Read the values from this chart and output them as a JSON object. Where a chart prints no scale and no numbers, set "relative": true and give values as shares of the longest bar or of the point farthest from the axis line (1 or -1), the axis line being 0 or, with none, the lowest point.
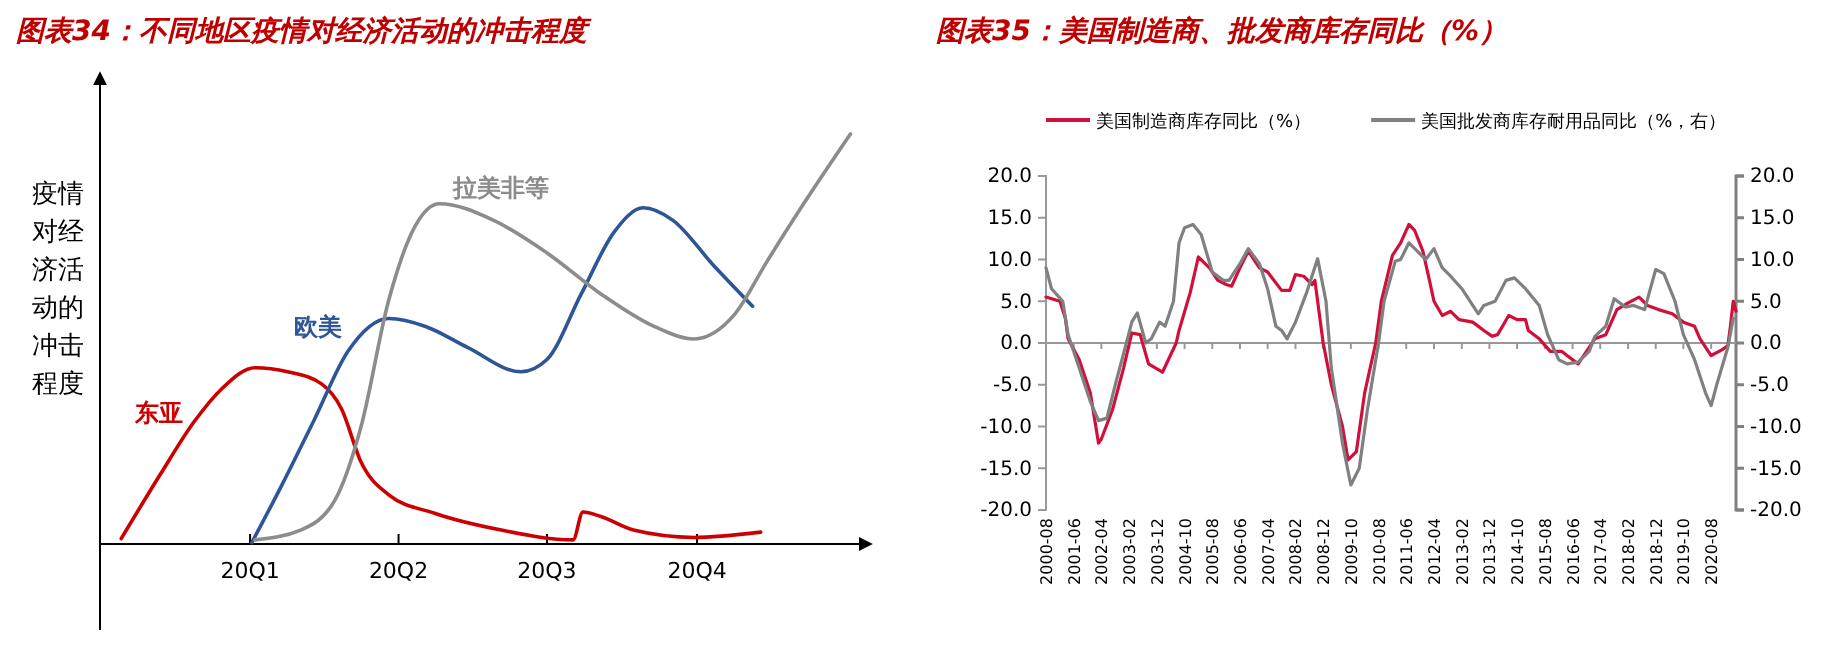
{
  "chart_data": [
    {
      "type": "line",
      "title": "图表34：不同地区疫情对经济活动的冲击程度",
      "ylabel": "疫情对经济活动的冲击程度",
      "relative": true,
      "tick_labels": "x",
      "xlim": [
        "2019-10-01",
        "2021-01-15"
      ],
      "xticks": [
        {
          "value": "2020-01-01",
          "label": "20Q1"
        },
        {
          "value": "2020-04-01",
          "label": "20Q2"
        },
        {
          "value": "2020-07-01",
          "label": "20Q3"
        },
        {
          "value": "2020-10-01",
          "label": "20Q4"
        }
      ],
      "series": [
        {
          "name": "东亚",
          "color": "#cc0000",
          "x": [
            "2019-10-14",
            "2019-11-07",
            "2019-11-28",
            "2019-12-15",
            "2020-01-04",
            "2020-01-24",
            "2020-02-14",
            "2020-02-26",
            "2020-03-09",
            "2020-03-26",
            "2020-04-23",
            "2020-06-03",
            "2020-07-17",
            "2020-07-23",
            "2020-08-03",
            "2020-08-23",
            "2020-09-29",
            "2020-11-09"
          ],
          "values": [
            0.013,
            0.17,
            0.3,
            0.38,
            0.43,
            0.42,
            0.39,
            0.33,
            0.2,
            0.12,
            0.075,
            0.034,
            0.01,
            0.078,
            0.067,
            0.034,
            0.016,
            0.029
          ]
        },
        {
          "name": "欧美",
          "color": "#2e5597",
          "x": [
            "2020-01-02",
            "2020-01-20",
            "2020-02-09",
            "2020-03-01",
            "2020-03-26",
            "2020-04-18",
            "2020-05-13",
            "2020-06-15",
            "2020-07-01",
            "2020-07-22",
            "2020-08-11",
            "2020-08-29",
            "2020-09-16",
            "2020-10-11",
            "2020-11-04"
          ],
          "values": [
            0.003,
            0.14,
            0.3,
            0.47,
            0.55,
            0.53,
            0.48,
            0.42,
            0.45,
            0.61,
            0.76,
            0.82,
            0.79,
            0.68,
            0.58
          ]
        },
        {
          "name": "拉美非等",
          "color": "#8c8c8c",
          "x": [
            "2020-01-04",
            "2020-02-01",
            "2020-02-22",
            "2020-03-09",
            "2020-03-26",
            "2020-04-11",
            "2020-04-26",
            "2020-05-29",
            "2020-07-01",
            "2020-08-03",
            "2020-09-05",
            "2020-09-29",
            "2020-10-24",
            "2020-11-13",
            "2020-12-07",
            "2021-01-03"
          ],
          "values": [
            0.01,
            0.034,
            0.107,
            0.286,
            0.595,
            0.774,
            0.83,
            0.79,
            0.71,
            0.61,
            0.53,
            0.5,
            0.56,
            0.69,
            0.84,
            1.0
          ]
        }
      ]
    },
    {
      "type": "line",
      "title": "图表35：美国制造商、批发商库存同比（%）",
      "legend": "top",
      "xlim": [
        "2000-08",
        "2021-05"
      ],
      "xticks": [
        "2000-08",
        "2001-06",
        "2002-04",
        "2003-02",
        "2003-12",
        "2004-10",
        "2005-08",
        "2006-06",
        "2007-04",
        "2008-02",
        "2008-12",
        "2009-10",
        "2010-08",
        "2011-06",
        "2012-04",
        "2013-02",
        "2013-12",
        "2014-10",
        "2015-08",
        "2016-06",
        "2017-04",
        "2018-02",
        "2018-12",
        "2019-10",
        "2020-08"
      ],
      "ylim": [
        -20,
        20
      ],
      "yticks": [
        {
          "value": -20,
          "label": "-20.0"
        },
        {
          "value": -15,
          "label": "-15.0"
        },
        {
          "value": -10,
          "label": "-10.0"
        },
        {
          "value": -5,
          "label": "-5.0"
        },
        {
          "value": 0,
          "label": "0.0"
        },
        {
          "value": 5,
          "label": "5.0"
        },
        {
          "value": 10,
          "label": "10.0"
        },
        {
          "value": 15,
          "label": "15.0"
        },
        {
          "value": 20,
          "label": "20.0"
        }
      ],
      "y2lim": [
        -20,
        20
      ],
      "y2ticks": [
        {
          "value": -20,
          "label": "-20.0"
        },
        {
          "value": -15,
          "label": "-15.0"
        },
        {
          "value": -10,
          "label": "-10.0"
        },
        {
          "value": -5,
          "label": "-5.0"
        },
        {
          "value": 0,
          "label": "0.0"
        },
        {
          "value": 5,
          "label": "5.0"
        },
        {
          "value": 10,
          "label": "10.0"
        },
        {
          "value": 15,
          "label": "15.0"
        },
        {
          "value": 20,
          "label": "20.0"
        }
      ],
      "series": [
        {
          "name": "美国制造商库存同比（%）",
          "color": "#d0103a",
          "x": [
            "2000-08",
            "2001-01",
            "2001-03",
            "2001-04",
            "2001-08",
            "2001-12",
            "2002-03",
            "2002-04",
            "2002-08",
            "2002-12",
            "2003-03",
            "2003-06",
            "2003-09",
            "2004-02",
            "2004-07",
            "2004-08",
            "2004-12",
            "2005-03",
            "2005-07",
            "2005-10",
            "2006-01",
            "2006-03",
            "2006-06",
            "2006-09",
            "2007-01",
            "2007-04",
            "2007-09",
            "2007-12",
            "2008-02",
            "2008-05",
            "2008-08",
            "2008-09",
            "2008-12",
            "2009-03",
            "2009-07",
            "2009-09",
            "2009-12",
            "2010-03",
            "2010-07",
            "2010-09",
            "2011-01",
            "2011-04",
            "2011-07",
            "2011-09",
            "2011-12",
            "2012-02",
            "2012-04",
            "2012-07",
            "2012-10",
            "2013-01",
            "2013-06",
            "2013-10",
            "2014-01",
            "2014-03",
            "2014-07",
            "2014-10",
            "2015-01",
            "2015-02",
            "2015-06",
            "2015-10",
            "2016-02",
            "2016-04",
            "2016-08",
            "2016-10",
            "2017-02",
            "2017-06",
            "2017-08",
            "2017-10",
            "2018-02",
            "2018-06",
            "2018-09",
            "2019-01",
            "2019-06",
            "2019-10",
            "2020-02",
            "2020-04",
            "2020-08",
            "2020-12",
            "2021-02",
            "2021-03",
            "2021-04",
            "2021-05"
          ],
          "values": [
            5.5,
            5.0,
            3.0,
            0.5,
            -2,
            -6,
            -12,
            -11.5,
            -8,
            -3,
            1.2,
            1.0,
            -2.5,
            -3.5,
            0,
            1.5,
            6,
            10.3,
            9,
            7.5,
            7,
            6.8,
            9,
            11,
            9,
            8.5,
            6.3,
            6.3,
            8.2,
            8,
            7,
            7.5,
            0,
            -5,
            -10,
            -14,
            -13,
            -6,
            0,
            5,
            10.5,
            12,
            14.2,
            13.5,
            11,
            8,
            5,
            3.3,
            3.8,
            2.8,
            2.5,
            1.5,
            0.8,
            1.0,
            3.3,
            2.8,
            2.8,
            1.5,
            0.5,
            -1.0,
            -1.0,
            -1.5,
            -2.5,
            -1.5,
            0.5,
            1.0,
            2.5,
            4.0,
            4.8,
            5.5,
            4.5,
            4.0,
            3.5,
            2.5,
            2.0,
            0.5,
            -1.5,
            -0.8,
            -0.3,
            2.0,
            5.0,
            3.8
          ]
        },
        {
          "name": "美国批发商库存耐用品同比（%，右）",
          "color": "#808080",
          "axis": "y2",
          "x": [
            "2000-08",
            "2000-10",
            "2001-02",
            "2001-04",
            "2001-08",
            "2001-12",
            "2002-03",
            "2002-06",
            "2002-09",
            "2003-01",
            "2003-03",
            "2003-05",
            "2003-08",
            "2003-10",
            "2004-01",
            "2004-03",
            "2004-06",
            "2004-08",
            "2004-10",
            "2005-01",
            "2005-04",
            "2005-08",
            "2005-12",
            "2006-02",
            "2006-06",
            "2006-09",
            "2007-01",
            "2007-04",
            "2007-07",
            "2007-09",
            "2007-11",
            "2008-02",
            "2008-06",
            "2008-10",
            "2009-01",
            "2009-03",
            "2009-07",
            "2009-10",
            "2010-01",
            "2010-04",
            "2010-08",
            "2010-10",
            "2011-02",
            "2011-04",
            "2011-07",
            "2011-10",
            "2012-01",
            "2012-04",
            "2012-07",
            "2012-10",
            "2013-02",
            "2013-06",
            "2013-08",
            "2013-10",
            "2014-02",
            "2014-06",
            "2014-09",
            "2015-01",
            "2015-06",
            "2015-09",
            "2016-01",
            "2016-04",
            "2016-08",
            "2016-12",
            "2017-02",
            "2017-06",
            "2017-09",
            "2018-01",
            "2018-04",
            "2018-08",
            "2018-12",
            "2019-03",
            "2019-07",
            "2019-10",
            "2020-02",
            "2020-06",
            "2020-08",
            "2020-10",
            "2021-02",
            "2021-04"
          ],
          "values": [
            9,
            6.5,
            5,
            1,
            -3,
            -7,
            -9.3,
            -9,
            -5,
            0,
            2.5,
            3.6,
            0,
            0.5,
            2.5,
            2,
            5,
            12,
            13.8,
            14.2,
            13,
            8.5,
            7.5,
            7.5,
            9.5,
            11.3,
            9.5,
            6.5,
            2,
            1.5,
            0.5,
            2.5,
            6,
            10.1,
            5,
            -3,
            -12,
            -17,
            -15,
            -8,
            0,
            5,
            9.8,
            10,
            12,
            11,
            10,
            11.3,
            9,
            8,
            6.5,
            4.5,
            3.5,
            4.5,
            5,
            7.5,
            7.8,
            6.5,
            4.5,
            1,
            -2,
            -2.5,
            -2.3,
            -1,
            0.8,
            2,
            5.3,
            4.3,
            4.5,
            4,
            8.8,
            8.3,
            5,
            1,
            -2,
            -6,
            -7.5,
            -5,
            -0.5,
            3
          ]
        }
      ]
    }
  ]
}
